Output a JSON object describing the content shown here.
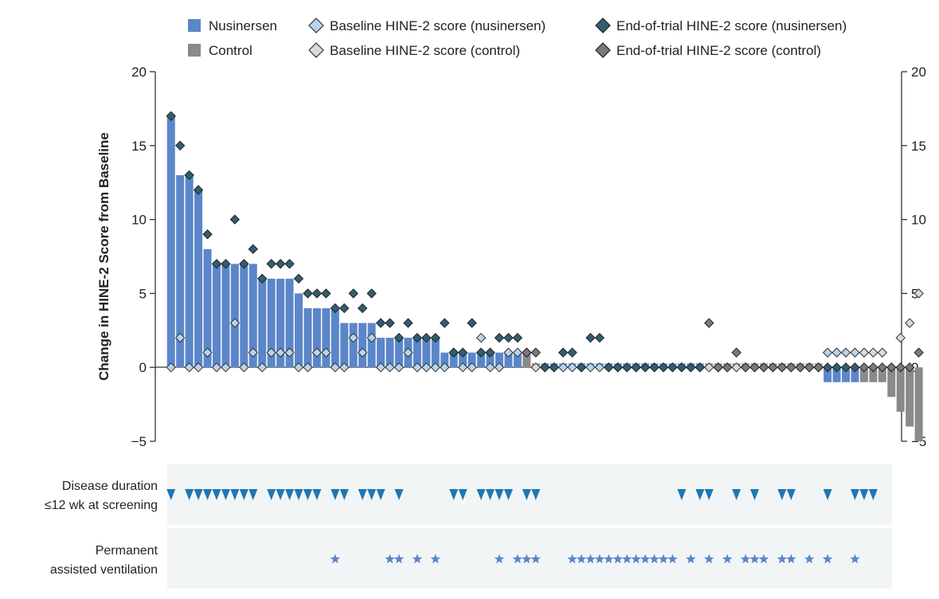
{
  "chart_data": {
    "type": "bar",
    "ylabel": "Change in HINE-2 Score from Baseline",
    "ylim": [
      -5,
      20
    ],
    "yticks": [
      {
        "value": 20,
        "label": "20"
      },
      {
        "value": 15,
        "label": "15"
      },
      {
        "value": 10,
        "label": "10"
      },
      {
        "value": 5,
        "label": "5"
      },
      {
        "value": 0,
        "label": "0"
      },
      {
        "value": -5,
        "label": "−5"
      }
    ],
    "legend": {
      "bar_nusinersen": "Nusinersen",
      "bar_control": "Control",
      "baseline_nusinersen": "Baseline HINE-2 score (nusinersen)",
      "baseline_control": "Baseline HINE-2 score (control)",
      "end_nusinersen": "End-of-trial HINE-2 score (nusinersen)",
      "end_control": "End-of-trial HINE-2 score (control)"
    },
    "colors": {
      "nusinersen": "#5b86c9",
      "control": "#8a8a8c",
      "baseline_nusinersen": "#b8d3ea",
      "baseline_control": "#d9d9d9",
      "end_nusinersen": "#2f5f70",
      "end_control": "#7a7a7c",
      "strip_bg": "#f2f5f5",
      "marker_triangle": "#1f77b4",
      "marker_star": "#5b86c9"
    },
    "strip_labels": {
      "duration_line1": "Disease duration",
      "duration_line2": "≤12 wk at screening",
      "ventilation_line1": "Permanent",
      "ventilation_line2": "assisted ventilation"
    },
    "patients": {
      "group": [
        "N",
        "N",
        "N",
        "N",
        "N",
        "N",
        "N",
        "N",
        "N",
        "N",
        "N",
        "N",
        "N",
        "N",
        "N",
        "N",
        "N",
        "N",
        "N",
        "N",
        "N",
        "N",
        "N",
        "N",
        "N",
        "N",
        "N",
        "N",
        "N",
        "N",
        "N",
        "N",
        "N",
        "N",
        "N",
        "N",
        "N",
        "N",
        "N",
        "C",
        "C",
        "N",
        "N",
        "N",
        "N",
        "N",
        "N",
        "N",
        "N",
        "N",
        "N",
        "N",
        "N",
        "N",
        "N",
        "N",
        "N",
        "N",
        "N",
        "C",
        "C",
        "C",
        "C",
        "C",
        "C",
        "C",
        "C",
        "C",
        "C",
        "C",
        "C",
        "C",
        "N",
        "N",
        "N",
        "N",
        "C",
        "C",
        "C",
        "C",
        "C",
        "C",
        "C"
      ],
      "change": [
        17,
        13,
        13,
        12,
        8,
        7,
        7,
        7,
        7,
        7,
        6,
        6,
        6,
        6,
        5,
        4,
        4,
        4,
        4,
        3,
        3,
        3,
        3,
        2,
        2,
        2,
        2,
        2,
        2,
        2,
        1,
        1,
        1,
        1,
        1,
        1,
        1,
        1,
        1,
        1,
        0,
        0,
        0,
        0,
        0,
        0,
        0,
        0,
        0,
        0,
        0,
        0,
        0,
        0,
        0,
        0,
        0,
        0,
        0,
        0,
        0,
        0,
        0,
        0,
        0,
        0,
        0,
        0,
        0,
        0,
        0,
        0,
        -1,
        -1,
        -1,
        -1,
        -1,
        -1,
        -1,
        -2,
        -3,
        -4,
        -5
      ],
      "baseline": [
        0,
        2,
        0,
        0,
        1,
        0,
        0,
        3,
        0,
        1,
        0,
        1,
        1,
        1,
        0,
        0,
        1,
        1,
        0,
        0,
        2,
        1,
        2,
        0,
        0,
        0,
        1,
        0,
        0,
        0,
        0,
        1,
        0,
        0,
        2,
        0,
        0,
        1,
        1,
        1,
        0,
        0,
        0,
        0,
        0,
        0,
        0,
        0,
        0,
        0,
        0,
        0,
        0,
        0,
        0,
        0,
        0,
        0,
        0,
        0,
        0,
        0,
        0,
        0,
        0,
        0,
        0,
        0,
        0,
        0,
        0,
        0,
        1,
        1,
        1,
        1,
        1,
        1,
        1,
        0,
        2,
        3,
        5
      ],
      "end": [
        17,
        15,
        13,
        12,
        9,
        7,
        7,
        10,
        7,
        8,
        6,
        7,
        7,
        7,
        6,
        5,
        5,
        5,
        4,
        4,
        5,
        4,
        5,
        3,
        3,
        2,
        3,
        2,
        2,
        2,
        3,
        1,
        1,
        3,
        1,
        1,
        2,
        2,
        2,
        1,
        1,
        0,
        0,
        1,
        1,
        0,
        2,
        2,
        0,
        0,
        0,
        0,
        0,
        0,
        0,
        0,
        0,
        0,
        0,
        3,
        0,
        0,
        1,
        0,
        0,
        0,
        0,
        0,
        0,
        0,
        0,
        0,
        0,
        0,
        0,
        0,
        0,
        0,
        0,
        0,
        0,
        0,
        1
      ],
      "duration_le_12wk": [
        1,
        0,
        1,
        1,
        1,
        1,
        1,
        1,
        1,
        1,
        0,
        1,
        1,
        1,
        1,
        1,
        1,
        0,
        1,
        1,
        0,
        1,
        1,
        1,
        0,
        1,
        0,
        0,
        0,
        0,
        0,
        1,
        1,
        0,
        1,
        1,
        1,
        1,
        0,
        1,
        1,
        0,
        0,
        0,
        0,
        0,
        0,
        0,
        0,
        0,
        0,
        0,
        0,
        0,
        0,
        0,
        1,
        0,
        1,
        1,
        0,
        0,
        1,
        0,
        1,
        0,
        0,
        1,
        1,
        0,
        0,
        0,
        1,
        0,
        0,
        1,
        1,
        1,
        0,
        0,
        0,
        0,
        0
      ],
      "permanent_ventilation": [
        0,
        0,
        0,
        0,
        0,
        0,
        0,
        0,
        0,
        0,
        0,
        0,
        0,
        0,
        0,
        0,
        0,
        0,
        1,
        0,
        0,
        0,
        0,
        0,
        1,
        1,
        0,
        1,
        0,
        1,
        0,
        0,
        0,
        0,
        0,
        0,
        1,
        0,
        1,
        1,
        1,
        0,
        0,
        0,
        1,
        1,
        1,
        1,
        1,
        1,
        1,
        1,
        1,
        1,
        1,
        1,
        0,
        1,
        0,
        1,
        0,
        1,
        0,
        1,
        1,
        1,
        0,
        1,
        1,
        0,
        1,
        0,
        1,
        0,
        0,
        1,
        0,
        0,
        0,
        0,
        0,
        0,
        0
      ]
    }
  }
}
